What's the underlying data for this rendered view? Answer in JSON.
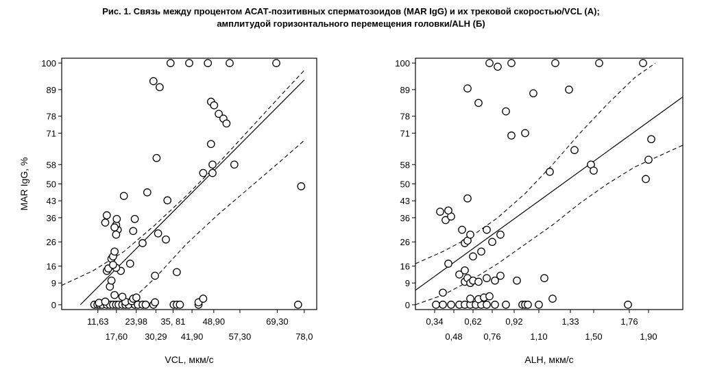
{
  "title": {
    "line1": "Рис. 1. Связь между процентом АСАТ-позитивных сперматозоидов (MAR IgG) и их трековой скоростью/VCL (А);",
    "line2": "амплитудой горизонтального перемещения головки/ALH (Б)"
  },
  "chart_data": [
    {
      "type": "scatter",
      "xlabel": "VCL, мкм/с",
      "ylabel": "MAR IgG, %",
      "xlim": [
        0,
        82
      ],
      "ylim": [
        -2,
        102
      ],
      "x_ticks": [
        {
          "value": 11.63,
          "label": "11,63",
          "row": 1
        },
        {
          "value": 17.6,
          "label": "17,60",
          "row": 2
        },
        {
          "value": 23.98,
          "label": "23,98",
          "row": 1
        },
        {
          "value": 30.29,
          "label": "30,29",
          "row": 2
        },
        {
          "value": 35.81,
          "label": "35, 81",
          "row": 1
        },
        {
          "value": 41.9,
          "label": "41,90",
          "row": 2
        },
        {
          "value": 48.9,
          "label": "48,90",
          "row": 1
        },
        {
          "value": 57.3,
          "label": "57,30",
          "row": 2
        },
        {
          "value": 69.3,
          "label": "69,30",
          "row": 1
        },
        {
          "value": 78.0,
          "label": "78,0",
          "row": 2
        }
      ],
      "y_ticks": [
        {
          "value": 0,
          "label": "0"
        },
        {
          "value": 9,
          "label": "9"
        },
        {
          "value": 16,
          "label": "16"
        },
        {
          "value": 26,
          "label": "26"
        },
        {
          "value": 36,
          "label": "36"
        },
        {
          "value": 43,
          "label": "43"
        },
        {
          "value": 50,
          "label": "50"
        },
        {
          "value": 58,
          "label": "58"
        },
        {
          "value": 71,
          "label": "71"
        },
        {
          "value": 78,
          "label": "78"
        },
        {
          "value": 89,
          "label": "89"
        },
        {
          "value": 100,
          "label": "100"
        }
      ],
      "points": [
        [
          10.5,
          0
        ],
        [
          11.5,
          0
        ],
        [
          12.2,
          0
        ],
        [
          13,
          0
        ],
        [
          14.5,
          0
        ],
        [
          15.5,
          0
        ],
        [
          16.5,
          0
        ],
        [
          17.5,
          0
        ],
        [
          18.3,
          0
        ],
        [
          19.5,
          0
        ],
        [
          20.5,
          0
        ],
        [
          21.5,
          0
        ],
        [
          23.5,
          0
        ],
        [
          24.5,
          0
        ],
        [
          26,
          0
        ],
        [
          27,
          0
        ],
        [
          29.5,
          0
        ],
        [
          36,
          0
        ],
        [
          37,
          0
        ],
        [
          38,
          0
        ],
        [
          44,
          0
        ],
        [
          76,
          0
        ],
        [
          12,
          0.8
        ],
        [
          14,
          1.3
        ],
        [
          20.5,
          1.2
        ],
        [
          22.5,
          1.5
        ],
        [
          23,
          2.5
        ],
        [
          24,
          3
        ],
        [
          30,
          1
        ],
        [
          44,
          1
        ],
        [
          45.5,
          2.5
        ],
        [
          17,
          4
        ],
        [
          19.5,
          3.3
        ],
        [
          15.5,
          7.5
        ],
        [
          16,
          10
        ],
        [
          14.5,
          14
        ],
        [
          15,
          15
        ],
        [
          16,
          19
        ],
        [
          16.5,
          20
        ],
        [
          17,
          22
        ],
        [
          19,
          14
        ],
        [
          30,
          12
        ],
        [
          17.5,
          15.3
        ],
        [
          37,
          13.5
        ],
        [
          20,
          45
        ],
        [
          23.5,
          35.5
        ],
        [
          23,
          30.5
        ],
        [
          18,
          31
        ],
        [
          17.5,
          33
        ],
        [
          17,
          32
        ],
        [
          17.5,
          29
        ],
        [
          17.7,
          35.5
        ],
        [
          14.5,
          37
        ],
        [
          14,
          34
        ],
        [
          16.5,
          16.5
        ],
        [
          22,
          17
        ],
        [
          26,
          25.5
        ],
        [
          34,
          43.2
        ],
        [
          31,
          29.5
        ],
        [
          27.5,
          46.5
        ],
        [
          33.5,
          27
        ],
        [
          30.5,
          60.7
        ],
        [
          45.5,
          54.5
        ],
        [
          48.5,
          58
        ],
        [
          48.5,
          54.5
        ],
        [
          55.5,
          58
        ],
        [
          48,
          84
        ],
        [
          49,
          82.5
        ],
        [
          50.5,
          79
        ],
        [
          48,
          66.5
        ],
        [
          52,
          77
        ],
        [
          53,
          75
        ],
        [
          29.5,
          92.5
        ],
        [
          31.5,
          90
        ],
        [
          35,
          100
        ],
        [
          41,
          100
        ],
        [
          47,
          100
        ],
        [
          54,
          100
        ],
        [
          69,
          100
        ],
        [
          77,
          49
        ]
      ],
      "fit_line": {
        "x1": 6,
        "y1": 0,
        "x2": 78,
        "y2": 93
      },
      "conf_upper": [
        [
          0,
          8
        ],
        [
          10,
          14
        ],
        [
          20,
          22
        ],
        [
          30,
          33
        ],
        [
          40,
          45
        ],
        [
          50,
          58
        ],
        [
          60,
          72
        ],
        [
          70,
          86
        ],
        [
          78,
          97
        ]
      ],
      "conf_lower": [
        [
          25,
          5
        ],
        [
          30,
          11
        ],
        [
          40,
          25
        ],
        [
          50,
          37
        ],
        [
          60,
          48
        ],
        [
          70,
          59
        ],
        [
          78,
          68
        ]
      ]
    },
    {
      "type": "scatter",
      "xlabel": "ALH, мкм/с",
      "ylabel": "",
      "xlim": [
        0.2,
        2.15
      ],
      "ylim": [
        -2,
        102
      ],
      "x_ticks": [
        {
          "value": 0.34,
          "label": "0,34",
          "row": 1
        },
        {
          "value": 0.48,
          "label": "0,48",
          "row": 2
        },
        {
          "value": 0.62,
          "label": "0,62",
          "row": 1
        },
        {
          "value": 0.76,
          "label": "0,76",
          "row": 2
        },
        {
          "value": 0.92,
          "label": "0,92",
          "row": 1
        },
        {
          "value": 1.1,
          "label": "1,10",
          "row": 2
        },
        {
          "value": 1.33,
          "label": "1,33",
          "row": 1
        },
        {
          "value": 1.5,
          "label": "1,50",
          "row": 2
        },
        {
          "value": 1.76,
          "label": "1,76",
          "row": 1
        },
        {
          "value": 1.9,
          "label": "1,90",
          "row": 2
        }
      ],
      "y_ticks": [
        {
          "value": 0,
          "label": "0"
        },
        {
          "value": 9,
          "label": "9"
        },
        {
          "value": 16,
          "label": "16"
        },
        {
          "value": 26,
          "label": "26"
        },
        {
          "value": 36,
          "label": "36"
        },
        {
          "value": 43,
          "label": "43"
        },
        {
          "value": 50,
          "label": "50"
        },
        {
          "value": 58,
          "label": "58"
        },
        {
          "value": 71,
          "label": "71"
        },
        {
          "value": 78,
          "label": "78"
        },
        {
          "value": 89,
          "label": "89"
        },
        {
          "value": 100,
          "label": "100"
        }
      ],
      "points": [
        [
          0.35,
          0
        ],
        [
          0.4,
          0
        ],
        [
          0.46,
          0
        ],
        [
          0.52,
          0
        ],
        [
          0.56,
          0
        ],
        [
          0.6,
          0
        ],
        [
          0.64,
          0
        ],
        [
          0.68,
          0
        ],
        [
          0.72,
          0
        ],
        [
          0.78,
          0
        ],
        [
          0.86,
          0
        ],
        [
          0.98,
          0
        ],
        [
          1.0,
          0
        ],
        [
          1.02,
          0
        ],
        [
          1.1,
          0
        ],
        [
          1.75,
          0
        ],
        [
          0.6,
          2.5
        ],
        [
          0.66,
          2.3
        ],
        [
          0.7,
          3
        ],
        [
          0.74,
          3.5
        ],
        [
          1.2,
          2.5
        ],
        [
          0.4,
          5
        ],
        [
          0.56,
          9.5
        ],
        [
          0.58,
          11
        ],
        [
          0.6,
          9
        ],
        [
          0.62,
          10
        ],
        [
          0.66,
          9.5
        ],
        [
          0.72,
          11
        ],
        [
          0.78,
          10
        ],
        [
          0.82,
          12
        ],
        [
          0.94,
          10
        ],
        [
          1.14,
          11
        ],
        [
          0.52,
          12.5
        ],
        [
          0.56,
          14.2
        ],
        [
          0.44,
          17
        ],
        [
          0.62,
          20
        ],
        [
          0.68,
          22
        ],
        [
          0.76,
          26
        ],
        [
          0.82,
          29
        ],
        [
          0.56,
          25.5
        ],
        [
          0.58,
          26.5
        ],
        [
          0.6,
          29
        ],
        [
          0.42,
          35
        ],
        [
          0.46,
          36.5
        ],
        [
          0.54,
          31
        ],
        [
          0.44,
          39
        ],
        [
          0.38,
          38.5
        ],
        [
          0.72,
          31
        ],
        [
          0.58,
          44
        ],
        [
          1.18,
          55
        ],
        [
          1.36,
          64
        ],
        [
          1.48,
          58
        ],
        [
          1.5,
          55.5
        ],
        [
          1.9,
          60
        ],
        [
          1.88,
          52
        ],
        [
          1.92,
          68.5
        ],
        [
          0.86,
          80
        ],
        [
          0.9,
          70
        ],
        [
          1.0,
          71
        ],
        [
          0.66,
          83.5
        ],
        [
          0.58,
          89.5
        ],
        [
          1.06,
          87.5
        ],
        [
          1.32,
          89
        ],
        [
          0.74,
          100
        ],
        [
          0.9,
          100
        ],
        [
          1.22,
          100
        ],
        [
          1.54,
          100
        ],
        [
          1.86,
          100
        ],
        [
          0.8,
          98.5
        ]
      ],
      "fit_line": {
        "x1": 0.2,
        "y1": 6,
        "x2": 2.15,
        "y2": 86
      },
      "conf_upper": [
        [
          0.2,
          17
        ],
        [
          0.4,
          22
        ],
        [
          0.6,
          28
        ],
        [
          0.8,
          36
        ],
        [
          1.0,
          46
        ],
        [
          1.2,
          58
        ],
        [
          1.4,
          71
        ],
        [
          1.6,
          83
        ],
        [
          1.8,
          94
        ],
        [
          1.95,
          100
        ]
      ],
      "conf_lower": [
        [
          0.2,
          0
        ],
        [
          0.4,
          4
        ],
        [
          0.6,
          10
        ],
        [
          0.8,
          17
        ],
        [
          1.0,
          25
        ],
        [
          1.2,
          33
        ],
        [
          1.4,
          42
        ],
        [
          1.6,
          50
        ],
        [
          1.8,
          57
        ],
        [
          2.15,
          66
        ]
      ]
    }
  ]
}
